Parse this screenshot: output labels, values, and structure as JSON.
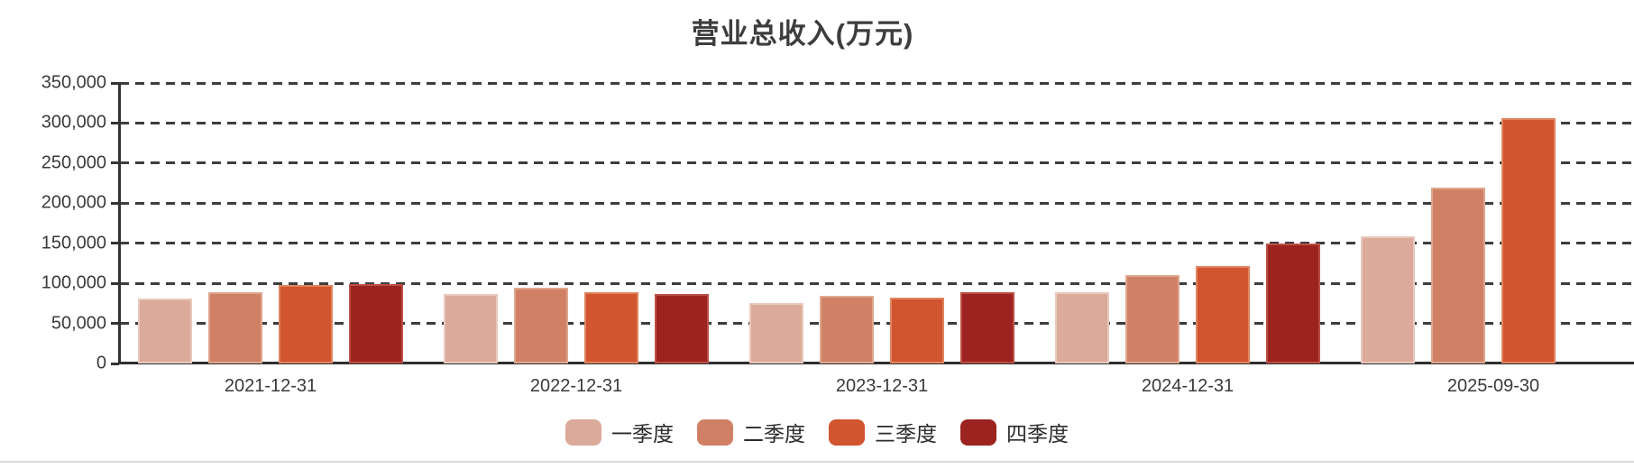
{
  "title": "营业总收入(万元)",
  "chart_data": {
    "type": "bar",
    "title": "营业总收入(万元)",
    "categories": [
      "2021-12-31",
      "2022-12-31",
      "2023-12-31",
      "2024-12-31",
      "2025-09-30"
    ],
    "series": [
      {
        "name": "一季度",
        "color": "#DBAA9A",
        "border_color": "#E9C9BC",
        "values": [
          81300,
          86500,
          74900,
          88900,
          158500
        ]
      },
      {
        "name": "二季度",
        "color": "#D08165",
        "border_color": "#DFA78E",
        "values": [
          88800,
          94200,
          84900,
          109900,
          220000
        ]
      },
      {
        "name": "三季度",
        "color": "#D1552F",
        "border_color": "#DF8560",
        "values": [
          98300,
          88700,
          82300,
          121800,
          306500
        ]
      },
      {
        "name": "四季度",
        "color": "#9C231F",
        "border_color": "#BB4F45",
        "values": [
          99000,
          86600,
          89200,
          149800,
          null
        ]
      }
    ],
    "ylim": [
      0,
      350000
    ],
    "ytick_step": 50000,
    "grid": "horizontal-dashed",
    "legend_position": "bottom"
  },
  "y_axis": {
    "tick_labels": [
      "0",
      "50,000",
      "100,000",
      "150,000",
      "200,000",
      "250,000",
      "300,000",
      "350,000"
    ]
  },
  "colors": {
    "axis": "#333333",
    "grid": "#3d3d3d",
    "text": "#3a3a3a",
    "divider": "#dbdbdb",
    "background": "#ffffff"
  }
}
